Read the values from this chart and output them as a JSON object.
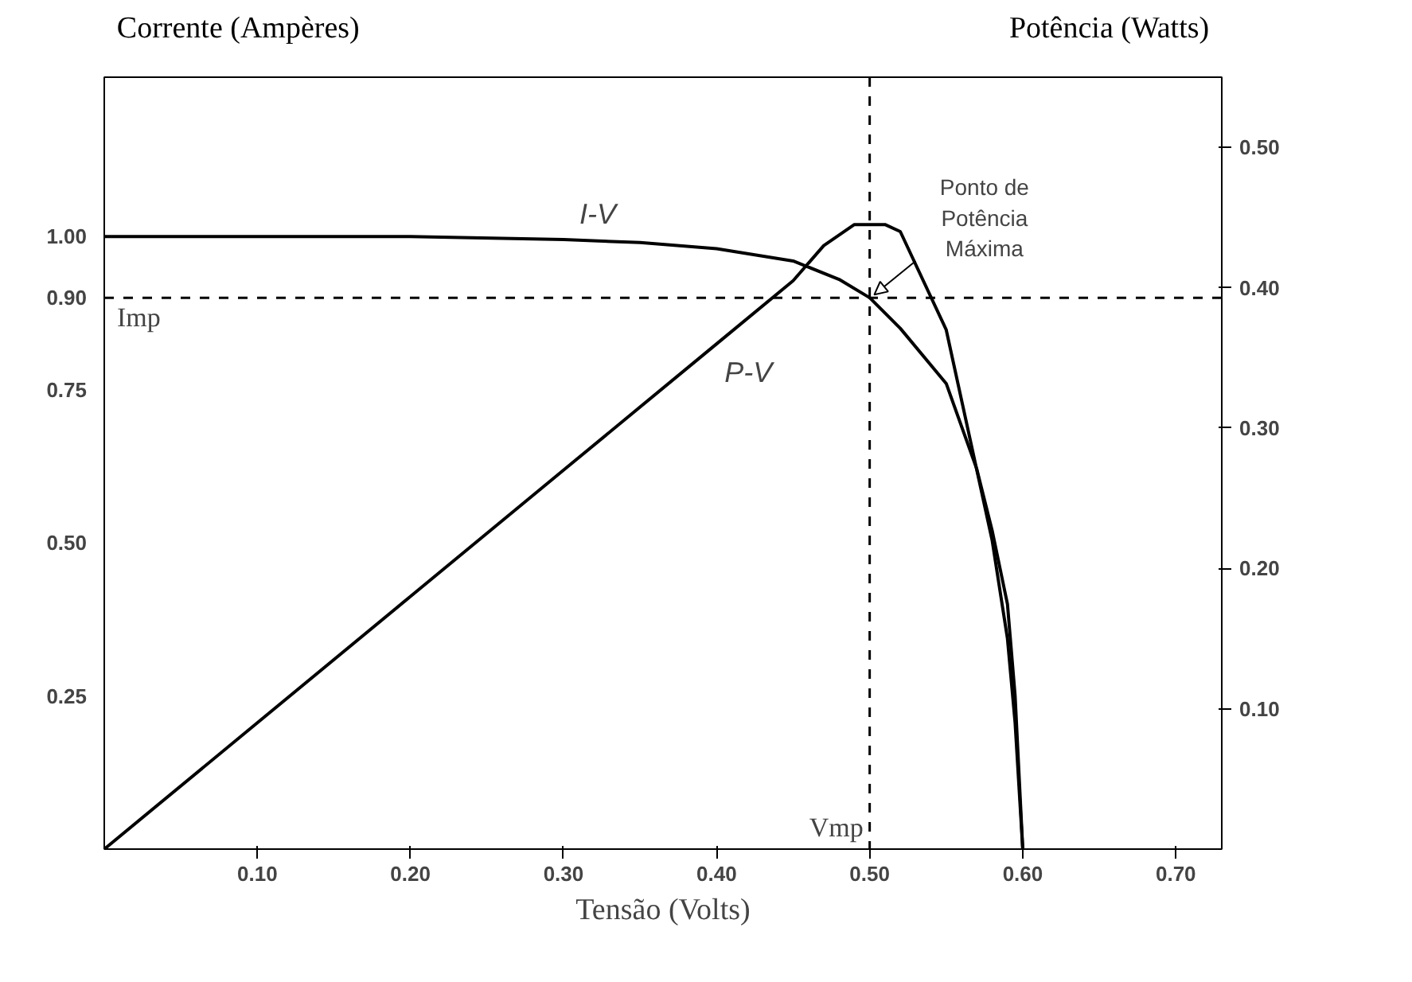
{
  "chart_data": {
    "type": "line",
    "xlabel": "Tensão (Volts)",
    "ylabel": "Corrente (Ampères)",
    "y2label": "Potência (Watts)",
    "series": [
      {
        "name": "I-V",
        "color": "#000000",
        "x": [
          0,
          0.1,
          0.2,
          0.3,
          0.35,
          0.4,
          0.45,
          0.48,
          0.5,
          0.52,
          0.55,
          0.57,
          0.58,
          0.59,
          0.595,
          0.6
        ],
        "values": [
          1.0,
          1.0,
          1.0,
          0.995,
          0.99,
          0.98,
          0.96,
          0.93,
          0.9,
          0.85,
          0.76,
          0.62,
          0.52,
          0.4,
          0.25,
          0
        ]
      },
      {
        "name": "P-V",
        "color": "#000000",
        "axis": "y2",
        "x": [
          0,
          0.1,
          0.2,
          0.3,
          0.4,
          0.45,
          0.47,
          0.49,
          0.51,
          0.52,
          0.55,
          0.57,
          0.58,
          0.59,
          0.595,
          0.6
        ],
        "values": [
          0,
          0.09,
          0.18,
          0.27,
          0.36,
          0.405,
          0.43,
          0.445,
          0.445,
          0.44,
          0.37,
          0.27,
          0.22,
          0.15,
          0.09,
          0
        ]
      }
    ],
    "xlim": [
      0,
      0.73
    ],
    "xticks": [
      {
        "value": 0.1,
        "label": "0.10"
      },
      {
        "value": 0.2,
        "label": "0.20"
      },
      {
        "value": 0.3,
        "label": "0.30"
      },
      {
        "value": 0.4,
        "label": "0.40"
      },
      {
        "value": 0.5,
        "label": "0.50"
      },
      {
        "value": 0.6,
        "label": "0.60"
      },
      {
        "value": 0.7,
        "label": "0.70"
      }
    ],
    "ylim": [
      0,
      1.26
    ],
    "yticks": [
      0.25,
      {
        "value": 0.5,
        "label": "0.50"
      },
      0.75,
      {
        "value": 0.9,
        "label": "0.90"
      },
      {
        "value": 1.0,
        "label": "1.00"
      }
    ],
    "y2lim": [
      0,
      0.55
    ],
    "y2ticks": [
      {
        "value": 0.1,
        "label": "0.10"
      },
      {
        "value": 0.2,
        "label": "0.20"
      },
      {
        "value": 0.3,
        "label": "0.30"
      },
      {
        "value": 0.4,
        "label": "0.40"
      },
      {
        "value": 0.5,
        "label": "0.50"
      }
    ],
    "ref_lines": [
      {
        "axis": "y",
        "value": 0.9,
        "label": "Imp",
        "line_style": "dashed"
      },
      {
        "axis": "x",
        "value": 0.5,
        "label": "Vmp",
        "line_style": "dashed"
      }
    ],
    "annotations": [
      {
        "text": "Ponto de\nPotência\nMáxima",
        "x": 0.5,
        "y": 0.9
      }
    ],
    "grid": false,
    "legend": false,
    "marker": "none",
    "line_style": "solid"
  }
}
